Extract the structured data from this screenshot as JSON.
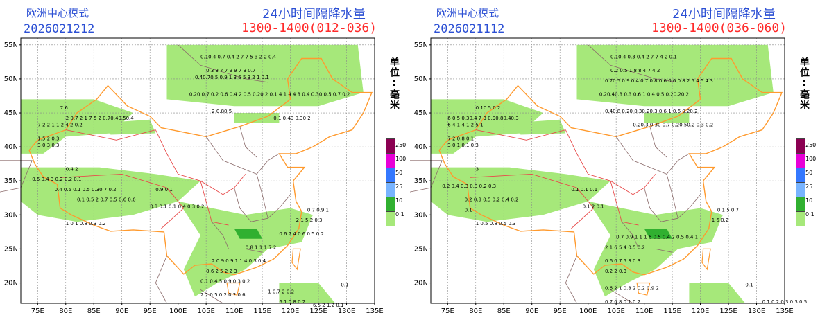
{
  "panels": [
    {
      "model": "欧洲中心模式",
      "init_time": "2026021212",
      "title": "24小时间隔降水量",
      "period": "1300-1400(012-036)",
      "unit": "单位:毫米",
      "values": [
        {
          "lon": 79,
          "lat": 45.5,
          "v": "7.6"
        },
        {
          "lon": 80,
          "lat": 44,
          "v": "2 0.7 2 1 7 5 2 0.70.40.50.4"
        },
        {
          "lon": 75,
          "lat": 43,
          "v": "7 2 2 1 1 2 4 2 0.2"
        },
        {
          "lon": 75,
          "lat": 41,
          "v": "1.5 2 0.3"
        },
        {
          "lon": 75,
          "lat": 40,
          "v": "3 0.3 0.3"
        },
        {
          "lon": 80,
          "lat": 36.5,
          "v": "0.4 2"
        },
        {
          "lon": 74,
          "lat": 35,
          "v": "0.5 0.4 3 0.2 0.2 0.1"
        },
        {
          "lon": 78,
          "lat": 33.5,
          "v": "0.4 0.5 0.1 0.5 0.30 7 0.2"
        },
        {
          "lon": 82,
          "lat": 32,
          "v": "0.1 0.5 2 0.7 0.5 0.6 0.6"
        },
        {
          "lon": 95,
          "lat": 31,
          "v": "0.3 0.1 0.1"
        },
        {
          "lon": 96,
          "lat": 33.5,
          "v": "0.9 0.1"
        },
        {
          "lon": 100,
          "lat": 31,
          "v": "0.4 0.3 0.2"
        },
        {
          "lon": 80,
          "lat": 28.5,
          "v": "1 0 1 0.8 0.3 0.2"
        },
        {
          "lon": 104,
          "lat": 53,
          "v": "0.10.4 0.7 0.4 2 7 7 5 3 2 2 0.4"
        },
        {
          "lon": 105,
          "lat": 51,
          "v": "0.3 3 7 7 9 9 7 3 0.7"
        },
        {
          "lon": 103,
          "lat": 50,
          "v": "0.40.70.5 0.9 1 3 6 5 3 2 1 0.1"
        },
        {
          "lon": 102,
          "lat": 47.5,
          "v": "0.20 0.7 0.2 0.6 0.4 2 0.5 0.20 2 0.1 4 1 4 4 3 0.4 0.30 0.5 0.7 0.2"
        },
        {
          "lon": 106,
          "lat": 45,
          "v": "2 0.80.5"
        },
        {
          "lon": 117,
          "lat": 44,
          "v": "0.1 0.40 0.30 2"
        },
        {
          "lon": 123,
          "lat": 30.5,
          "v": "0.7 0.9 1"
        },
        {
          "lon": 121,
          "lat": 29,
          "v": "2 1 5 2 0.3"
        },
        {
          "lon": 118,
          "lat": 27,
          "v": "0.6 7 4 0.6 0.5 0.2"
        },
        {
          "lon": 112,
          "lat": 25,
          "v": "0.8 1 1 1 7 2"
        },
        {
          "lon": 106,
          "lat": 23,
          "v": "2 0.9 0.9 1 1 4 0.3 0.4"
        },
        {
          "lon": 105,
          "lat": 21.5,
          "v": "0.6 2 5 2 2 3"
        },
        {
          "lon": 104,
          "lat": 20,
          "v": "0.1 0.4 5 0.9 0.3 0.2"
        },
        {
          "lon": 104,
          "lat": 18,
          "v": "2 2 0.5 0.2 0.2 0.6"
        },
        {
          "lon": 116,
          "lat": 18.5,
          "v": "1 0.7 2 0.2"
        },
        {
          "lon": 118,
          "lat": 17,
          "v": "6 1 0.8 0.2"
        },
        {
          "lon": 129,
          "lat": 19.5,
          "v": "0.1"
        },
        {
          "lon": 124,
          "lat": 16.5,
          "v": "6.5 2 1.2 0.1"
        }
      ]
    },
    {
      "model": "欧洲中心模式",
      "init_time": "2026021112",
      "title": "24小时间隔降水量",
      "period": "1300-1400(036-060)",
      "unit": "单位:毫米",
      "values": [
        {
          "lon": 80,
          "lat": 45.5,
          "v": "0.10.5 0.2"
        },
        {
          "lon": 75,
          "lat": 44,
          "v": "6 0.5 0.30.4 7 3 0.90.80.40.3"
        },
        {
          "lon": 75,
          "lat": 43,
          "v": "6 4 1 4 1 2 5 1"
        },
        {
          "lon": 75,
          "lat": 41,
          "v": "7 2 0.8 0.1"
        },
        {
          "lon": 75,
          "lat": 40,
          "v": "3 0.1 0.1 0.3"
        },
        {
          "lon": 80,
          "lat": 36.5,
          "v": "3"
        },
        {
          "lon": 74,
          "lat": 34,
          "v": "0.2 0.4 0.3 0.3 0.2 0.3"
        },
        {
          "lon": 78,
          "lat": 32,
          "v": "0.2 0.3 0.5 0.2 0.4 0.2"
        },
        {
          "lon": 78,
          "lat": 30.5,
          "v": "0.1"
        },
        {
          "lon": 80,
          "lat": 28.5,
          "v": "1 0.5 0.8 0.5 0.3"
        },
        {
          "lon": 97,
          "lat": 33.5,
          "v": "0.1 0.1 0.1"
        },
        {
          "lon": 99,
          "lat": 31,
          "v": "0.1 2 0.1"
        },
        {
          "lon": 104,
          "lat": 53,
          "v": "0.10.4 0.3 0.4 2 7 7 4 2 0.1"
        },
        {
          "lon": 104,
          "lat": 51,
          "v": "0.2 0.5 1 8 8 4 7 4 2"
        },
        {
          "lon": 103,
          "lat": 49.5,
          "v": "0.70.5 0.9 0.4 0.7 0.8 0.6 0.6 0.8 2 5 4 5 4 3"
        },
        {
          "lon": 102,
          "lat": 47.5,
          "v": "0.20.40.3 0.3 0.6 1 0.4 0.5 0.20.20.2"
        },
        {
          "lon": 103,
          "lat": 45,
          "v": "0.40.8 0.20 0.30.20.3 0.6 1 0.6 0.20.2"
        },
        {
          "lon": 108,
          "lat": 43,
          "v": "0.20.3 0.30 0.7 0.20.50.2 0.3 0.2"
        },
        {
          "lon": 123,
          "lat": 30.5,
          "v": "0.1 5 0.7"
        },
        {
          "lon": 122,
          "lat": 29,
          "v": "1 6 0.2"
        },
        {
          "lon": 105,
          "lat": 26.5,
          "v": "0.7 0.9 1 1 1 6 0.5 0.4 2 0.5 0.4 1"
        },
        {
          "lon": 103,
          "lat": 25,
          "v": "2 1 6 5 4 0.5 0.2"
        },
        {
          "lon": 103,
          "lat": 23,
          "v": "0.6 0.7 5 3 0.3"
        },
        {
          "lon": 103,
          "lat": 21.5,
          "v": "0.2 2 0.3"
        },
        {
          "lon": 103,
          "lat": 19,
          "v": "0.6 2 1 0.8 2 0.2 0.9 2"
        },
        {
          "lon": 103,
          "lat": 17,
          "v": "0.7 0.8 0.1 0.2"
        },
        {
          "lon": 128,
          "lat": 19.5,
          "v": "0.1"
        },
        {
          "lon": 131,
          "lat": 17,
          "v": "0.1 0.2 0.3 0.3 0.5"
        }
      ]
    }
  ],
  "axes": {
    "lon_ticks": [
      "75E",
      "80E",
      "85E",
      "90E",
      "95E",
      "100E",
      "105E",
      "110E",
      "115E",
      "120E",
      "125E",
      "130E",
      "135E"
    ],
    "lat_ticks": [
      "20N",
      "25N",
      "30N",
      "35N",
      "40N",
      "45N",
      "50N",
      "55N"
    ]
  },
  "legend": {
    "labels": [
      "250",
      "100",
      "50",
      "25",
      "10",
      "0.1"
    ],
    "colors": [
      "#8b0052",
      "#e800d7",
      "#3478ff",
      "#78b4ff",
      "#30b030",
      "#a6e87a",
      "#ffffff"
    ]
  }
}
